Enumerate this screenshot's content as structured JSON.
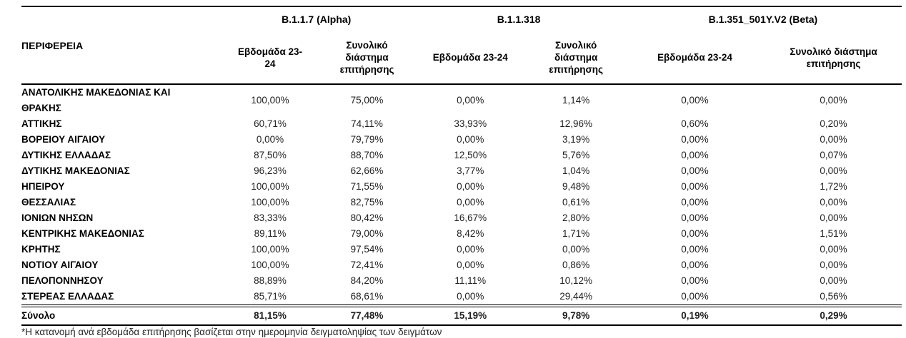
{
  "table": {
    "region_header": "ΠΕΡΙΦΕΡΕΙΑ",
    "groups": [
      {
        "label": "B.1.1.7 (Alpha)",
        "subcolumns": [
          "Εβδομάδα 23-24",
          "Συνολικό διάστημα επιτήρησης"
        ]
      },
      {
        "label": "B.1.1.318",
        "subcolumns": [
          "Εβδομάδα 23-24",
          "Συνολικό διάστημα επιτήρησης"
        ]
      },
      {
        "label": "B.1.351_501Y.V2 (Beta)",
        "subcolumns": [
          "Εβδομάδα 23-24",
          "Συνολικό διάστημα επιτήρησης"
        ]
      }
    ],
    "rows": [
      {
        "region": "ΑΝΑΤΟΛΙΚΗΣ ΜΑΚΕΔΟΝΙΑΣ ΚΑΙ ΘΡΑΚΗΣ",
        "values": [
          "100,00%",
          "75,00%",
          "0,00%",
          "1,14%",
          "0,00%",
          "0,00%"
        ]
      },
      {
        "region": "ΑΤΤΙΚΗΣ",
        "values": [
          "60,71%",
          "74,11%",
          "33,93%",
          "12,96%",
          "0,60%",
          "0,20%"
        ]
      },
      {
        "region": "ΒΟΡΕΙΟΥ ΑΙΓΑΙΟΥ",
        "values": [
          "0,00%",
          "79,79%",
          "0,00%",
          "3,19%",
          "0,00%",
          "0,00%"
        ]
      },
      {
        "region": "ΔΥΤΙΚΗΣ ΕΛΛΑΔΑΣ",
        "values": [
          "87,50%",
          "88,70%",
          "12,50%",
          "5,76%",
          "0,00%",
          "0,07%"
        ]
      },
      {
        "region": "ΔΥΤΙΚΗΣ ΜΑΚΕΔΟΝΙΑΣ",
        "values": [
          "96,23%",
          "62,66%",
          "3,77%",
          "1,04%",
          "0,00%",
          "0,00%"
        ]
      },
      {
        "region": "ΗΠΕΙΡΟΥ",
        "values": [
          "100,00%",
          "71,55%",
          "0,00%",
          "9,48%",
          "0,00%",
          "1,72%"
        ]
      },
      {
        "region": "ΘΕΣΣΑΛΙΑΣ",
        "values": [
          "100,00%",
          "82,75%",
          "0,00%",
          "0,61%",
          "0,00%",
          "0,00%"
        ]
      },
      {
        "region": "ΙΟΝΙΩΝ ΝΗΣΩΝ",
        "values": [
          "83,33%",
          "80,42%",
          "16,67%",
          "2,80%",
          "0,00%",
          "0,00%"
        ]
      },
      {
        "region": "ΚΕΝΤΡΙΚΗΣ ΜΑΚΕΔΟΝΙΑΣ",
        "values": [
          "89,11%",
          "79,00%",
          "8,42%",
          "1,71%",
          "0,00%",
          "1,51%"
        ]
      },
      {
        "region": "ΚΡΗΤΗΣ",
        "values": [
          "100,00%",
          "97,54%",
          "0,00%",
          "0,00%",
          "0,00%",
          "0,00%"
        ]
      },
      {
        "region": "ΝΟΤΙΟΥ ΑΙΓΑΙΟΥ",
        "values": [
          "100,00%",
          "72,41%",
          "0,00%",
          "0,86%",
          "0,00%",
          "0,00%"
        ]
      },
      {
        "region": "ΠΕΛΟΠΟΝΝΗΣΟΥ",
        "values": [
          "88,89%",
          "84,20%",
          "11,11%",
          "10,12%",
          "0,00%",
          "0,00%"
        ]
      },
      {
        "region": "ΣΤΕΡΕΑΣ ΕΛΛΑΔΑΣ",
        "values": [
          "85,71%",
          "68,61%",
          "0,00%",
          "29,44%",
          "0,00%",
          "0,56%"
        ]
      }
    ],
    "total": {
      "region": "Σύνολο",
      "values": [
        "81,15%",
        "77,48%",
        "15,19%",
        "9,78%",
        "0,19%",
        "0,29%"
      ]
    }
  },
  "footnote": "*Η κατανομή ανά εβδομάδα επιτήρησης βασίζεται στην ημερομηνία δειγματοληψίας των δειγμάτων"
}
